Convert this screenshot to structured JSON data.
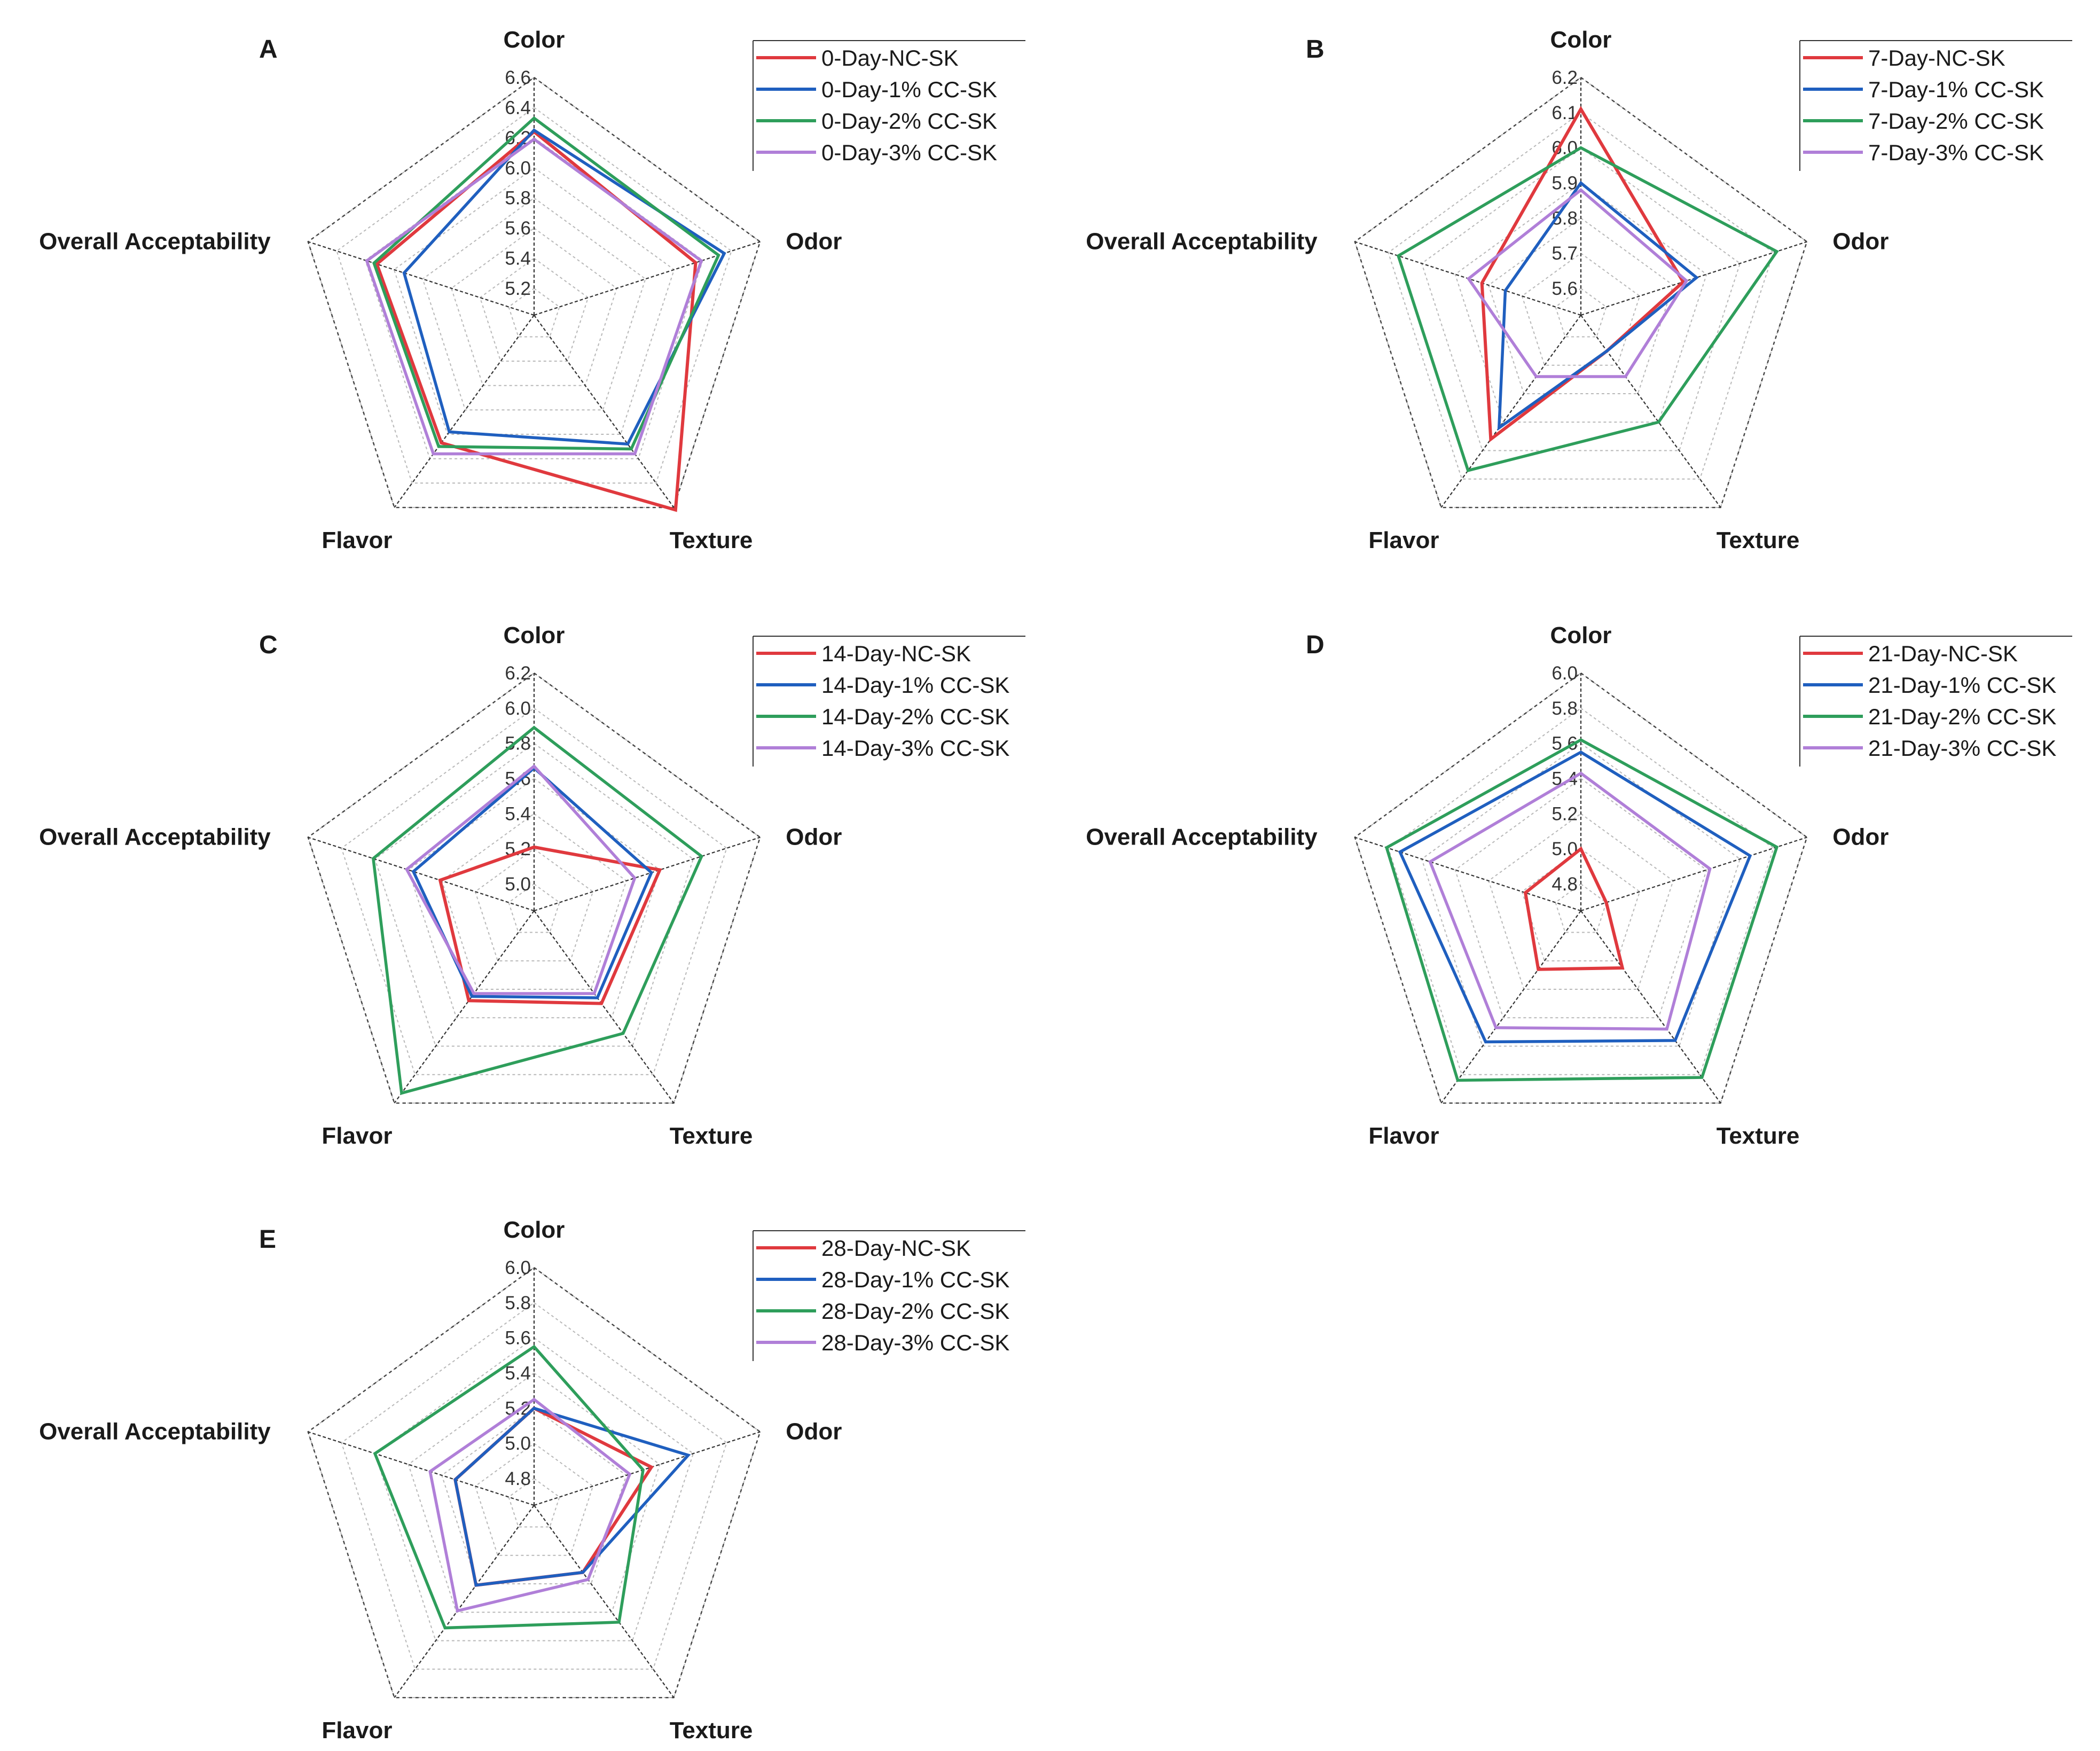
{
  "colors": {
    "nc": "#e0393e",
    "cc1": "#1f5fbf",
    "cc2": "#2e9e5b",
    "cc3": "#b07fd8"
  },
  "axes": [
    "Color",
    "Odor",
    "Texture",
    "Flavor",
    "Overall Acceptability"
  ],
  "chart_data": [
    {
      "panel": "A",
      "type": "radar",
      "axes": [
        "Color",
        "Odor",
        "Texture",
        "Flavor",
        "Overall Acceptability"
      ],
      "rlim": [
        5.2,
        6.6
      ],
      "ticks": [
        "5.2",
        "5.4",
        "5.6",
        "5.8",
        "6.0",
        "6.2",
        "6.4",
        "6.6"
      ],
      "series": [
        {
          "name": "0-Day-NC-SK",
          "color_key": "nc",
          "values": [
            6.24,
            6.15,
            6.62,
            6.07,
            6.12
          ]
        },
        {
          "name": "0-Day-1% CC-SK",
          "color_key": "cc1",
          "values": [
            6.25,
            6.35,
            6.08,
            5.98,
            5.93
          ]
        },
        {
          "name": "0-Day-2% CC-SK",
          "color_key": "cc2",
          "values": [
            6.33,
            6.31,
            6.12,
            6.1,
            6.14
          ]
        },
        {
          "name": "0-Day-3% CC-SK",
          "color_key": "cc3",
          "values": [
            6.19,
            6.19,
            6.16,
            6.16,
            6.19
          ]
        }
      ]
    },
    {
      "panel": "B",
      "type": "radar",
      "axes": [
        "Color",
        "Odor",
        "Texture",
        "Flavor",
        "Overall Acceptability"
      ],
      "rlim": [
        5.6,
        6.2
      ],
      "ticks": [
        "5.6",
        "5.7",
        "5.8",
        "5.9",
        "6.0",
        "6.1",
        "6.2"
      ],
      "series": [
        {
          "name": "7-Day-NC-SK",
          "color_key": "nc",
          "values": [
            6.11,
            5.83,
            5.65,
            5.96,
            5.82
          ]
        },
        {
          "name": "7-Day-1% CC-SK",
          "color_key": "cc1",
          "values": [
            5.9,
            5.87,
            5.65,
            5.92,
            5.75
          ]
        },
        {
          "name": "7-Day-2% CC-SK",
          "color_key": "cc2",
          "values": [
            6.0,
            6.11,
            5.9,
            6.07,
            6.07
          ]
        },
        {
          "name": "7-Day-3% CC-SK",
          "color_key": "cc3",
          "values": [
            5.88,
            5.84,
            5.74,
            5.74,
            5.86
          ]
        }
      ]
    },
    {
      "panel": "C",
      "type": "radar",
      "axes": [
        "Color",
        "Odor",
        "Texture",
        "Flavor",
        "Overall Acceptability"
      ],
      "rlim": [
        5.0,
        6.2
      ],
      "ticks": [
        "5.0",
        "5.2",
        "5.4",
        "5.6",
        "5.8",
        "6.0",
        "6.2"
      ],
      "series": [
        {
          "name": "14-Day-NC-SK",
          "color_key": "nc",
          "values": [
            5.21,
            5.6,
            5.5,
            5.48,
            5.41
          ]
        },
        {
          "name": "14-Day-1% CC-SK",
          "color_key": "cc1",
          "values": [
            5.66,
            5.55,
            5.46,
            5.45,
            5.57
          ]
        },
        {
          "name": "14-Day-2% CC-SK",
          "color_key": "cc2",
          "values": [
            5.89,
            5.85,
            5.71,
            6.13,
            5.81
          ]
        },
        {
          "name": "14-Day-3% CC-SK",
          "color_key": "cc3",
          "values": [
            5.67,
            5.45,
            5.43,
            5.43,
            5.61
          ]
        }
      ]
    },
    {
      "panel": "D",
      "type": "radar",
      "axes": [
        "Color",
        "Odor",
        "Texture",
        "Flavor",
        "Overall Acceptability"
      ],
      "rlim": [
        4.8,
        6.0
      ],
      "ticks": [
        "4.8",
        "5.0",
        "5.2",
        "5.4",
        "5.6",
        "5.8",
        "6.0"
      ],
      "series": [
        {
          "name": "21-Day-NC-SK",
          "color_key": "nc",
          "values": [
            5.0,
            4.8,
            5.05,
            5.06,
            4.98
          ]
        },
        {
          "name": "21-Day-1% CC-SK",
          "color_key": "cc1",
          "values": [
            5.55,
            5.66,
            5.56,
            5.57,
            5.73
          ]
        },
        {
          "name": "21-Day-2% CC-SK",
          "color_key": "cc2",
          "values": [
            5.62,
            5.82,
            5.82,
            5.84,
            5.81
          ]
        },
        {
          "name": "21-Day-3% CC-SK",
          "color_key": "cc3",
          "values": [
            5.43,
            5.42,
            5.48,
            5.47,
            5.55
          ]
        }
      ]
    },
    {
      "panel": "E",
      "type": "radar",
      "axes": [
        "Color",
        "Odor",
        "Texture",
        "Flavor",
        "Overall Acceptability"
      ],
      "rlim": [
        4.8,
        6.0
      ],
      "ticks": [
        "4.8",
        "5.0",
        "5.2",
        "5.4",
        "5.6",
        "5.8",
        "6.0"
      ],
      "series": [
        {
          "name": "28-Day-NC-SK",
          "color_key": "nc",
          "values": [
            5.2,
            5.35,
            5.12,
            5.21,
            5.12
          ]
        },
        {
          "name": "28-Day-1% CC-SK",
          "color_key": "cc1",
          "values": [
            5.2,
            5.57,
            5.12,
            5.21,
            5.12
          ]
        },
        {
          "name": "28-Day-2% CC-SK",
          "color_key": "cc2",
          "values": [
            5.55,
            5.3,
            5.47,
            5.51,
            5.6
          ]
        },
        {
          "name": "28-Day-3% CC-SK",
          "color_key": "cc3",
          "values": [
            5.25,
            5.22,
            5.17,
            5.39,
            5.27
          ]
        }
      ]
    }
  ]
}
